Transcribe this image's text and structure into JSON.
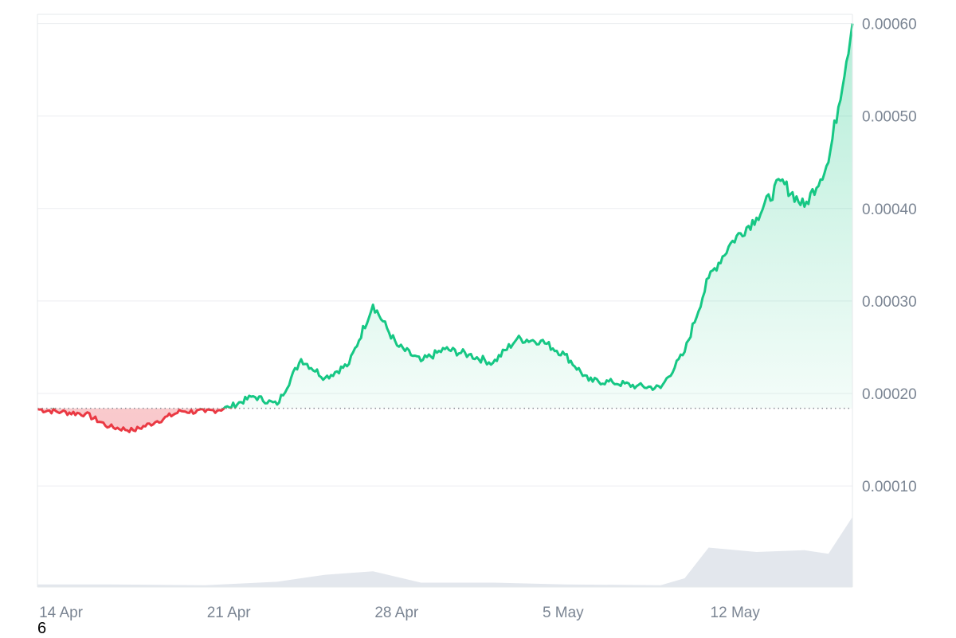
{
  "chart_data": {
    "type": "area",
    "x_axis": {
      "type": "date",
      "tick_labels": [
        "14 Apr",
        "21 Apr",
        "28 Apr",
        "5 May",
        "12 May"
      ]
    },
    "y_axis": {
      "position": "right",
      "range": [
        -9.3e-06,
        0.00061
      ],
      "ticks": [
        0.0001,
        0.0002,
        0.0003,
        0.0004,
        0.0005,
        0.0006
      ],
      "tick_labels": [
        "0.00010",
        "0.00020",
        "0.00030",
        "0.00040",
        "0.00050",
        "0.00060"
      ]
    },
    "grid": true,
    "baseline": 0.000184,
    "colors": {
      "above": "#16c784",
      "below": "#ea3943",
      "volume": "#e3e7ed",
      "grid": "#eceef1",
      "axis_text": "#7b8593"
    },
    "series": [
      {
        "kind": "price",
        "points": [
          [
            "2024-04-13",
            0.000183
          ],
          [
            "2024-04-14",
            0.00018
          ],
          [
            "2024-04-15",
            0.000178
          ],
          [
            "2024-04-16",
            0.000164
          ],
          [
            "2024-04-17",
            0.00016
          ],
          [
            "2024-04-18",
            0.00017
          ],
          [
            "2024-04-19",
            0.000181
          ],
          [
            "2024-04-20",
            0.00018
          ],
          [
            "2024-04-21",
            0.000185
          ],
          [
            "2024-04-22",
            0.000197
          ],
          [
            "2024-04-23",
            0.000188
          ],
          [
            "2024-04-24",
            0.000237
          ],
          [
            "2024-04-25",
            0.000217
          ],
          [
            "2024-04-26",
            0.000232
          ],
          [
            "2024-04-27",
            0.000296
          ],
          [
            "2024-04-28",
            0.000252
          ],
          [
            "2024-04-29",
            0.000235
          ],
          [
            "2024-04-30",
            0.000248
          ],
          [
            "2024-05-01",
            0.000242
          ],
          [
            "2024-05-02",
            0.000233
          ],
          [
            "2024-05-03",
            0.000259
          ],
          [
            "2024-05-04",
            0.000257
          ],
          [
            "2024-05-05",
            0.000242
          ],
          [
            "2024-05-06",
            0.000214
          ],
          [
            "2024-05-07",
            0.000212
          ],
          [
            "2024-05-08",
            0.000208
          ],
          [
            "2024-05-09",
            0.000206
          ],
          [
            "2024-05-10",
            0.000245
          ],
          [
            "2024-05-11",
            0.000325
          ],
          [
            "2024-05-12",
            0.000365
          ],
          [
            "2024-05-13",
            0.00039
          ],
          [
            "2024-05-14",
            0.00043
          ],
          [
            "2024-05-15",
            0.000402
          ],
          [
            "2024-05-16",
            0.00045
          ],
          [
            "2024-05-17",
            0.0006
          ]
        ]
      },
      {
        "kind": "volume",
        "points": [
          [
            "2024-04-13",
            3
          ],
          [
            "2024-04-16",
            3
          ],
          [
            "2024-04-20",
            2
          ],
          [
            "2024-04-23",
            6
          ],
          [
            "2024-04-25",
            14
          ],
          [
            "2024-04-27",
            18
          ],
          [
            "2024-04-29",
            5
          ],
          [
            "2024-05-02",
            5
          ],
          [
            "2024-05-05",
            3
          ],
          [
            "2024-05-09",
            2
          ],
          [
            "2024-05-10",
            10
          ],
          [
            "2024-05-11",
            45
          ],
          [
            "2024-05-13",
            40
          ],
          [
            "2024-05-15",
            42
          ],
          [
            "2024-05-16",
            38
          ],
          [
            "2024-05-17",
            80
          ]
        ]
      }
    ]
  },
  "footnote": "6"
}
